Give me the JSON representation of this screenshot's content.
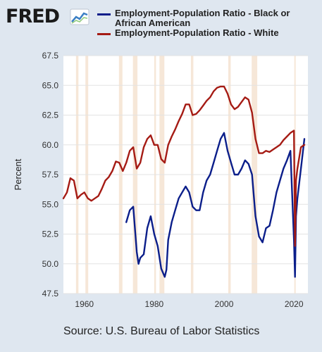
{
  "logo": {
    "text": "FRED",
    "mark_color": "#3b7fc4"
  },
  "legend": [
    {
      "label": "Employment-Population Ratio - Black or African American",
      "color": "#0b1e8a"
    },
    {
      "label": "Employment-Population Ratio - White",
      "color": "#a51b14"
    }
  ],
  "source": "Source: U.S. Bureau of Labor Statistics",
  "chart_data": {
    "type": "line",
    "ylabel": "Percent",
    "xlim": [
      1954,
      2024
    ],
    "ylim": [
      47.5,
      67.5
    ],
    "yticks": [
      "47.5",
      "50.0",
      "52.5",
      "55.0",
      "57.5",
      "60.0",
      "62.5",
      "65.0",
      "67.5"
    ],
    "xticks": [
      "1960",
      "1980",
      "2000",
      "2020"
    ],
    "recessions": [
      [
        1957.6,
        1958.3
      ],
      [
        1960.3,
        1961.1
      ],
      [
        1969.9,
        1970.9
      ],
      [
        1973.9,
        1975.2
      ],
      [
        1980.0,
        1980.5
      ],
      [
        1981.5,
        1982.9
      ],
      [
        1990.5,
        1991.2
      ],
      [
        2001.2,
        2001.9
      ],
      [
        2007.9,
        2009.5
      ],
      [
        2020.1,
        2020.4
      ]
    ],
    "series": [
      {
        "name": "Employment-Population Ratio - Black or African American",
        "color": "#0b1e8a",
        "x": [
          1972,
          1973,
          1974,
          1975,
          1975.5,
          1976,
          1977,
          1978,
          1979,
          1980,
          1981,
          1982,
          1983,
          1983.5,
          1984,
          1985,
          1986,
          1987,
          1988,
          1989,
          1990,
          1991,
          1992,
          1993,
          1994,
          1995,
          1996,
          1997,
          1998,
          1999,
          2000,
          2001,
          2002,
          2003,
          2004,
          2005,
          2006,
          2007,
          2008,
          2009,
          2010,
          2011,
          2012,
          2013,
          2014,
          2015,
          2016,
          2017,
          2018,
          2019,
          2020,
          2020.3,
          2020.6,
          2021,
          2022,
          2023
        ],
        "y": [
          53.5,
          54.5,
          54.8,
          51.0,
          50.0,
          50.5,
          50.8,
          53.0,
          54.0,
          52.5,
          51.5,
          49.6,
          48.9,
          49.5,
          52.0,
          53.5,
          54.5,
          55.5,
          56.0,
          56.5,
          56.0,
          54.8,
          54.5,
          54.5,
          56.0,
          57.0,
          57.5,
          58.5,
          59.5,
          60.5,
          61.0,
          59.5,
          58.5,
          57.5,
          57.5,
          58.0,
          58.7,
          58.4,
          57.5,
          54.0,
          52.3,
          51.8,
          53.0,
          53.2,
          54.5,
          56.0,
          57.0,
          58.0,
          58.7,
          59.5,
          52.0,
          48.9,
          54.0,
          55.5,
          58.0,
          60.5
        ]
      },
      {
        "name": "Employment-Population Ratio - White",
        "color": "#a51b14",
        "x": [
          1954,
          1955,
          1956,
          1957,
          1958,
          1959,
          1960,
          1961,
          1962,
          1963,
          1964,
          1965,
          1966,
          1967,
          1968,
          1969,
          1970,
          1971,
          1972,
          1973,
          1974,
          1975,
          1976,
          1977,
          1978,
          1979,
          1980,
          1981,
          1982,
          1983,
          1984,
          1985,
          1986,
          1987,
          1988,
          1989,
          1990,
          1991,
          1992,
          1993,
          1994,
          1995,
          1996,
          1997,
          1998,
          1999,
          2000,
          2001,
          2002,
          2003,
          2004,
          2005,
          2006,
          2007,
          2008,
          2009,
          2010,
          2011,
          2012,
          2013,
          2014,
          2015,
          2016,
          2017,
          2018,
          2019,
          2020,
          2020.3,
          2020.6,
          2021,
          2022,
          2023
        ],
        "y": [
          55.5,
          56.0,
          57.2,
          57.0,
          55.5,
          55.8,
          56.0,
          55.5,
          55.3,
          55.5,
          55.7,
          56.3,
          57.0,
          57.3,
          57.8,
          58.6,
          58.5,
          57.8,
          58.5,
          59.5,
          59.8,
          58.0,
          58.5,
          59.8,
          60.5,
          60.8,
          60.0,
          60.0,
          58.8,
          58.5,
          60.0,
          60.7,
          61.3,
          62.0,
          62.6,
          63.4,
          63.4,
          62.5,
          62.6,
          62.9,
          63.3,
          63.7,
          64.0,
          64.5,
          64.8,
          64.9,
          64.9,
          64.3,
          63.4,
          63.0,
          63.2,
          63.6,
          64.0,
          63.8,
          62.7,
          60.5,
          59.3,
          59.3,
          59.5,
          59.4,
          59.6,
          59.8,
          60.0,
          60.4,
          60.7,
          61.0,
          61.2,
          51.5,
          57.0,
          58.0,
          59.8,
          60.0
        ]
      }
    ]
  }
}
